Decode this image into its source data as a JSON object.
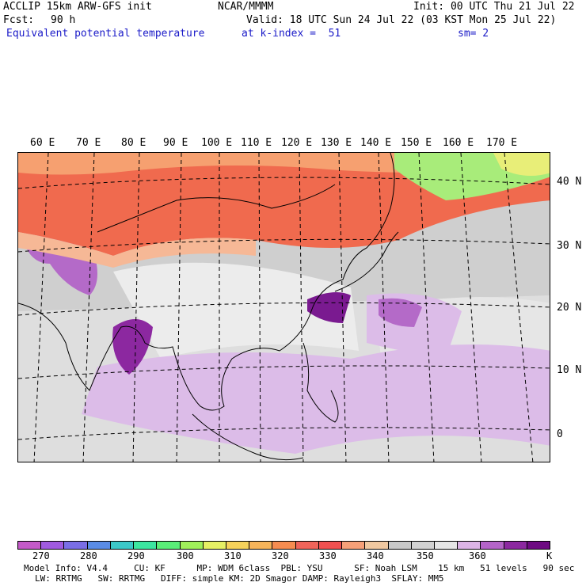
{
  "header": {
    "model": "ACCLIP 15km ARW-GFS init",
    "center": "NCAR/MMMM",
    "init": "Init: 00 UTC Thu 21 Jul 22",
    "fcst_label": "Fcst:",
    "fcst_value": "90 h",
    "valid": "Valid: 18 UTC Sun 24 Jul 22 (03 KST Mon 25 Jul 22)",
    "field": "Equivalent potential temperature",
    "level": "at k-index =  51",
    "smoothing": "sm= 2"
  },
  "map": {
    "lon_labels": [
      "60 E",
      "70 E",
      "80 E",
      "90 E",
      "100 E",
      "110 E",
      "120 E",
      "130 E",
      "140 E",
      "150 E",
      "160 E",
      "170 E"
    ],
    "lat_labels": [
      "40 N",
      "30 N",
      "20 N",
      "10 N",
      "0"
    ]
  },
  "colorbar": {
    "colors": [
      "#c45ac8",
      "#a05ae0",
      "#7a6ee6",
      "#5a8ce6",
      "#3cc8c8",
      "#3ce6a0",
      "#5aee78",
      "#a0f05a",
      "#e6f064",
      "#f6d25a",
      "#f6b45a",
      "#f68c50",
      "#f0645a",
      "#f05050",
      "#f6a078",
      "#f0c8a0",
      "#c8c8c8",
      "#d2d2d2",
      "#e6e6e6",
      "#dcb4e6",
      "#b464c8",
      "#8c28a0",
      "#6e0a82"
    ],
    "tick_labels": [
      "270",
      "280",
      "290",
      "300",
      "310",
      "320",
      "330",
      "340",
      "350",
      "360"
    ],
    "unit": "K"
  },
  "footer": {
    "line1": "Model Info: V4.4     CU: KF      MP: WDM 6class  PBL: YSU      SF: Noah LSM    15 km   51 levels   90 sec",
    "line2": "LW: RRTMG   SW: RRTMG   DIFF: simple KM: 2D Smagor DAMP: Rayleigh3  SFLAY: MM5"
  }
}
